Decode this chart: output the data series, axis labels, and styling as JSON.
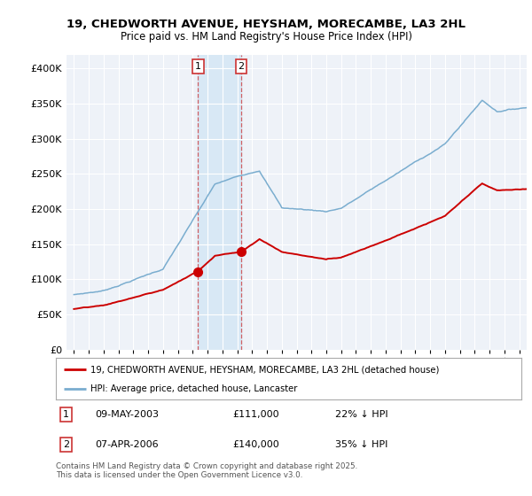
{
  "title_line1": "19, CHEDWORTH AVENUE, HEYSHAM, MORECAMBE, LA3 2HL",
  "title_line2": "Price paid vs. HM Land Registry's House Price Index (HPI)",
  "legend_label_red": "19, CHEDWORTH AVENUE, HEYSHAM, MORECAMBE, LA3 2HL (detached house)",
  "legend_label_blue": "HPI: Average price, detached house, Lancaster",
  "footer": "Contains HM Land Registry data © Crown copyright and database right 2025.\nThis data is licensed under the Open Government Licence v3.0.",
  "transaction1_date": "09-MAY-2003",
  "transaction1_price": "£111,000",
  "transaction1_hpi": "22% ↓ HPI",
  "transaction2_date": "07-APR-2006",
  "transaction2_price": "£140,000",
  "transaction2_hpi": "35% ↓ HPI",
  "transaction1_x": 2003.36,
  "transaction1_y": 111000,
  "transaction2_x": 2006.27,
  "transaction2_y": 140000,
  "ylim": [
    0,
    420000
  ],
  "xlim": [
    1994.5,
    2025.5
  ],
  "yticks": [
    0,
    50000,
    100000,
    150000,
    200000,
    250000,
    300000,
    350000,
    400000
  ],
  "red_color": "#cc0000",
  "blue_color": "#7aadcf",
  "background_plot": "#eef2f8",
  "shaded_region_color": "#d8e8f5",
  "grid_color": "#ffffff",
  "label_box_edge": "#cc3333"
}
